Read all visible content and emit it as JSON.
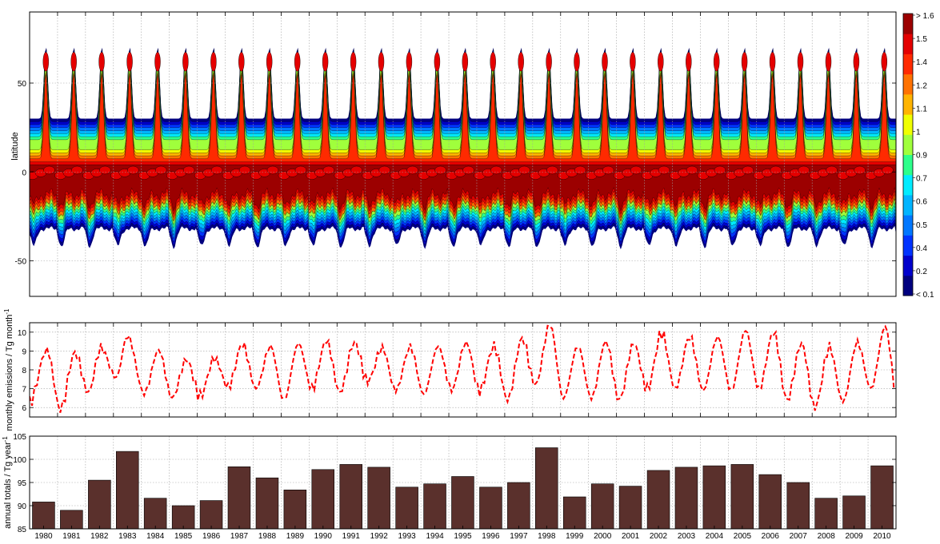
{
  "colors": {
    "bar": "#5a302c",
    "line": "#ff0000",
    "grid": "#a0a0a0",
    "colormap": [
      "#00007f",
      "#0000cc",
      "#0033ff",
      "#0077ff",
      "#00b4ff",
      "#00ecff",
      "#2dff8b",
      "#a0ff3c",
      "#f0ff00",
      "#ffb400",
      "#ff7200",
      "#ff2a00",
      "#e40000",
      "#9c0000"
    ]
  },
  "chart_data": [
    {
      "type": "heatmap",
      "title": "",
      "xlabel": "",
      "ylabel": "latitude",
      "xlim": [
        1980,
        2011
      ],
      "ylim": [
        -70,
        90
      ],
      "yticks": [
        "50",
        "0",
        "-50"
      ],
      "ytick_values": [
        50,
        0,
        -50
      ],
      "grid": true,
      "colorbar": {
        "labels": [
          "> 1.6",
          "1.5",
          "1.4",
          "1.2",
          "1.1",
          "1",
          "0.9",
          "0.7",
          "0.6",
          "0.5",
          "0.4",
          "0.2",
          "< 0.1"
        ],
        "placement": "right"
      },
      "description_values": {
        "boreal_peak_latitude": 62,
        "boreal_max_latitude": 72,
        "southern_extent_latitude": -38,
        "equatorial_max_band": [
          -20,
          5
        ]
      }
    },
    {
      "type": "line",
      "ylabel": "monthly emissions / Tg month",
      "ylabel_sup": "-1",
      "ylim": [
        5.5,
        10.5
      ],
      "yticks": [
        "6",
        "7",
        "8",
        "9",
        "10"
      ],
      "ytick_values": [
        6,
        7,
        8,
        9,
        10
      ],
      "xlim": [
        1980,
        2011
      ],
      "grid": true,
      "line_style": "dashed",
      "annual_peaks": [
        {
          "x": 1980.62,
          "y": 9.05
        },
        {
          "x": 1981.62,
          "y": 8.9
        },
        {
          "x": 1982.55,
          "y": 9.15
        },
        {
          "x": 1983.5,
          "y": 9.8
        },
        {
          "x": 1984.62,
          "y": 9.05
        },
        {
          "x": 1985.62,
          "y": 8.55
        },
        {
          "x": 1986.62,
          "y": 8.6
        },
        {
          "x": 1987.62,
          "y": 9.35
        },
        {
          "x": 1988.62,
          "y": 9.25
        },
        {
          "x": 1989.62,
          "y": 9.4
        },
        {
          "x": 1990.62,
          "y": 9.55
        },
        {
          "x": 1991.62,
          "y": 9.45
        },
        {
          "x": 1992.62,
          "y": 9.15
        },
        {
          "x": 1993.62,
          "y": 9.2
        },
        {
          "x": 1994.62,
          "y": 9.25
        },
        {
          "x": 1995.62,
          "y": 9.45
        },
        {
          "x": 1996.62,
          "y": 9.25
        },
        {
          "x": 1997.62,
          "y": 9.65
        },
        {
          "x": 1998.62,
          "y": 10.4
        },
        {
          "x": 1999.62,
          "y": 9.25
        },
        {
          "x": 2000.62,
          "y": 9.5
        },
        {
          "x": 2001.62,
          "y": 9.4
        },
        {
          "x": 2002.62,
          "y": 9.95
        },
        {
          "x": 2003.62,
          "y": 9.75
        },
        {
          "x": 2004.62,
          "y": 9.75
        },
        {
          "x": 2005.62,
          "y": 10.1
        },
        {
          "x": 2006.62,
          "y": 10.0
        },
        {
          "x": 2007.62,
          "y": 9.4
        },
        {
          "x": 2008.62,
          "y": 9.2
        },
        {
          "x": 2009.62,
          "y": 9.45
        },
        {
          "x": 2010.62,
          "y": 10.3
        }
      ],
      "annual_troughs": [
        {
          "x": 1980.0,
          "y": 6.3
        },
        {
          "x": 1981.1,
          "y": 5.9
        },
        {
          "x": 1982.1,
          "y": 6.8
        },
        {
          "x": 1983.1,
          "y": 7.6
        },
        {
          "x": 1984.1,
          "y": 6.75
        },
        {
          "x": 1985.1,
          "y": 6.5
        },
        {
          "x": 1986.1,
          "y": 6.6
        },
        {
          "x": 1987.1,
          "y": 7.1
        },
        {
          "x": 1988.1,
          "y": 7.0
        },
        {
          "x": 1989.1,
          "y": 6.4
        },
        {
          "x": 1990.1,
          "y": 7.0
        },
        {
          "x": 1991.1,
          "y": 6.8
        },
        {
          "x": 1992.1,
          "y": 7.4
        },
        {
          "x": 1993.1,
          "y": 6.9
        },
        {
          "x": 1994.1,
          "y": 6.7
        },
        {
          "x": 1995.1,
          "y": 6.95
        },
        {
          "x": 1996.1,
          "y": 6.9
        },
        {
          "x": 1997.1,
          "y": 6.4
        },
        {
          "x": 1998.1,
          "y": 7.2
        },
        {
          "x": 1999.1,
          "y": 6.5
        },
        {
          "x": 2000.1,
          "y": 6.5
        },
        {
          "x": 2001.1,
          "y": 6.4
        },
        {
          "x": 2002.1,
          "y": 7.0
        },
        {
          "x": 2003.1,
          "y": 7.0
        },
        {
          "x": 2004.1,
          "y": 6.9
        },
        {
          "x": 2005.1,
          "y": 6.9
        },
        {
          "x": 2006.1,
          "y": 7.0
        },
        {
          "x": 2007.1,
          "y": 6.4
        },
        {
          "x": 2008.1,
          "y": 6.0
        },
        {
          "x": 2009.1,
          "y": 6.3
        },
        {
          "x": 2010.1,
          "y": 7.0
        },
        {
          "x": 2011.0,
          "y": 7.0
        }
      ]
    },
    {
      "type": "bar",
      "ylabel": "annual totals / Tg year",
      "ylabel_sup": "-1",
      "ylim": [
        85,
        105
      ],
      "yticks": [
        "85",
        "90",
        "95",
        "100",
        "105"
      ],
      "ytick_values": [
        85,
        90,
        95,
        100,
        105
      ],
      "grid": true,
      "categories": [
        "1980",
        "1981",
        "1982",
        "1983",
        "1984",
        "1985",
        "1986",
        "1987",
        "1988",
        "1989",
        "1990",
        "1991",
        "1992",
        "1993",
        "1994",
        "1995",
        "1996",
        "1997",
        "1998",
        "1999",
        "2000",
        "2001",
        "2002",
        "2003",
        "2004",
        "2005",
        "2006",
        "2007",
        "2008",
        "2009",
        "2010"
      ],
      "values": [
        90.8,
        89.0,
        95.5,
        101.7,
        91.6,
        90.0,
        91.1,
        98.4,
        96.0,
        93.4,
        97.8,
        98.9,
        98.3,
        94.0,
        94.7,
        96.3,
        94.0,
        95.0,
        102.5,
        91.9,
        94.7,
        94.2,
        97.6,
        98.3,
        98.6,
        98.9,
        96.7,
        95.0,
        91.6,
        92.1,
        98.6
      ]
    }
  ]
}
